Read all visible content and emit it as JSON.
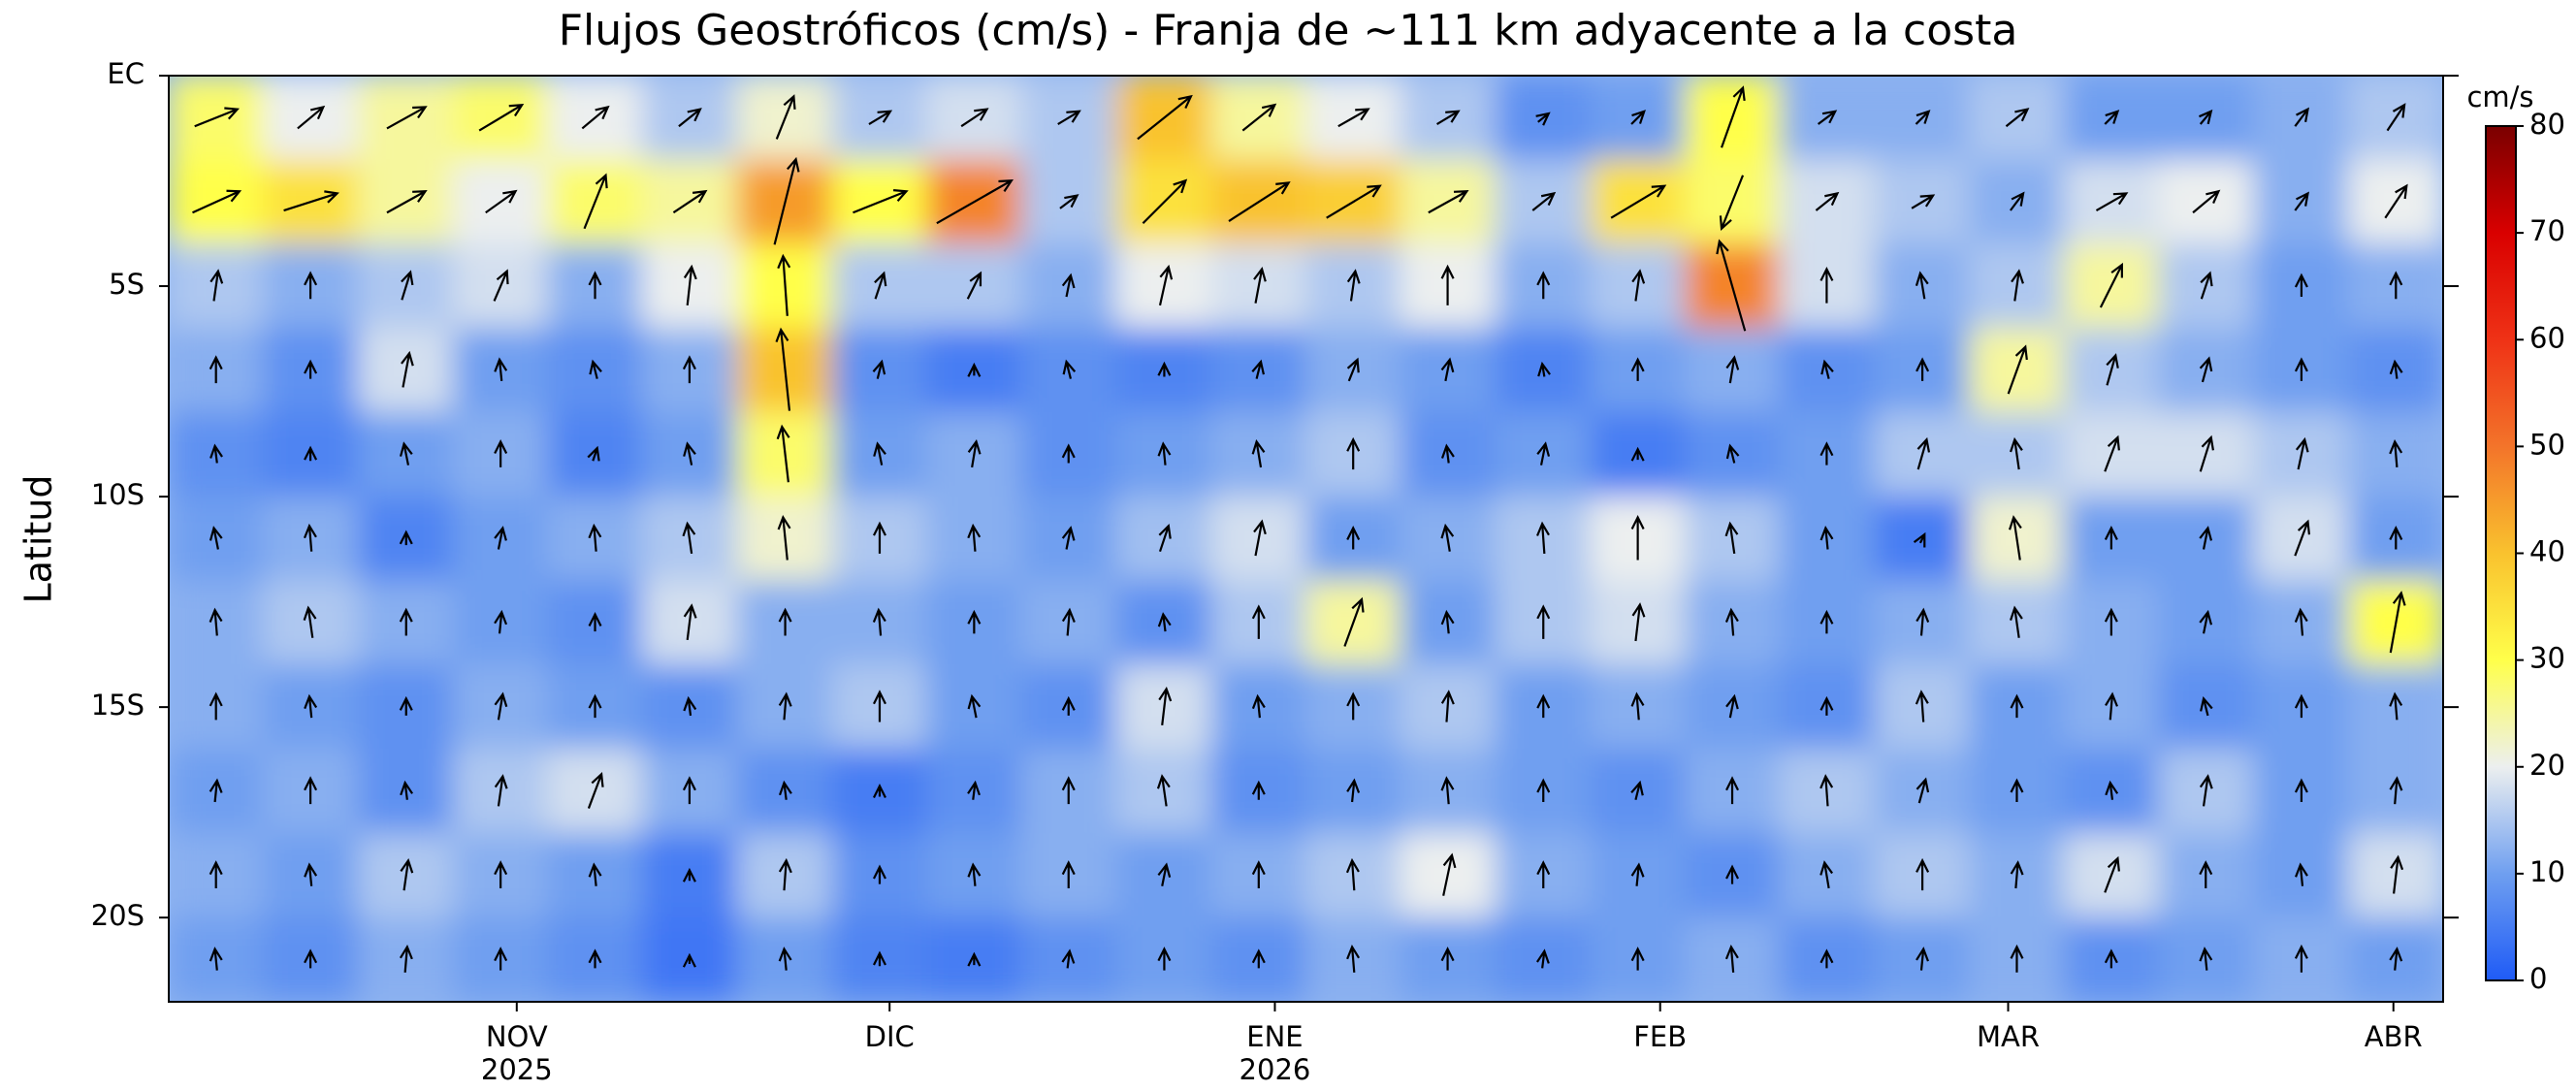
{
  "chart_data": {
    "type": "heatmap",
    "title": "Flujos Geostróficos (cm/s) - Franja de ~111 km adyacente a la costa",
    "ylabel": "Latitud",
    "colorbar_label": "cm/s",
    "x": [
      3.8,
      11.4,
      19.1,
      26.7,
      34.3,
      41.9,
      49.6,
      57.2,
      64.8,
      72.4,
      80.1,
      87.7,
      95.3,
      102.9,
      110.6,
      118.2,
      125.8,
      133.4,
      141.1,
      148.7,
      156.3,
      163.9,
      171.6,
      179.2
    ],
    "y": [
      -1,
      -3,
      -5,
      -7,
      -9,
      -11,
      -13,
      -15,
      -17,
      -19,
      -21
    ],
    "values": [
      [
        28,
        20,
        25,
        28,
        20,
        15,
        22,
        15,
        18,
        15,
        40,
        25,
        20,
        15,
        8,
        10,
        30,
        12,
        12,
        15,
        10,
        10,
        12,
        15
      ],
      [
        30,
        35,
        25,
        20,
        28,
        25,
        45,
        30,
        48,
        15,
        35,
        40,
        38,
        25,
        15,
        35,
        28,
        18,
        15,
        12,
        18,
        20,
        12,
        20
      ],
      [
        15,
        12,
        15,
        18,
        12,
        20,
        30,
        15,
        15,
        12,
        20,
        18,
        15,
        20,
        12,
        15,
        48,
        18,
        12,
        15,
        25,
        15,
        10,
        12
      ],
      [
        12,
        8,
        18,
        10,
        8,
        12,
        40,
        8,
        5,
        8,
        6,
        8,
        12,
        10,
        6,
        10,
        12,
        8,
        10,
        25,
        15,
        12,
        10,
        8
      ],
      [
        8,
        6,
        10,
        12,
        6,
        10,
        28,
        10,
        12,
        8,
        10,
        12,
        15,
        8,
        10,
        5,
        8,
        10,
        15,
        15,
        18,
        18,
        15,
        12
      ],
      [
        10,
        12,
        6,
        10,
        12,
        15,
        22,
        15,
        12,
        10,
        14,
        18,
        10,
        12,
        15,
        20,
        15,
        10,
        5,
        22,
        10,
        10,
        18,
        10
      ],
      [
        12,
        15,
        12,
        10,
        8,
        18,
        12,
        12,
        10,
        12,
        8,
        15,
        25,
        10,
        15,
        18,
        12,
        10,
        12,
        15,
        12,
        10,
        12,
        30
      ],
      [
        12,
        10,
        8,
        12,
        10,
        8,
        12,
        15,
        10,
        8,
        18,
        10,
        12,
        15,
        10,
        12,
        10,
        8,
        15,
        10,
        12,
        8,
        10,
        12
      ],
      [
        10,
        12,
        8,
        15,
        18,
        12,
        8,
        5,
        8,
        12,
        15,
        8,
        10,
        12,
        10,
        8,
        12,
        15,
        12,
        10,
        8,
        15,
        10,
        12
      ],
      [
        12,
        10,
        15,
        12,
        10,
        5,
        15,
        8,
        10,
        12,
        10,
        12,
        15,
        20,
        12,
        10,
        8,
        12,
        15,
        12,
        18,
        12,
        10,
        18
      ],
      [
        10,
        8,
        12,
        10,
        8,
        4,
        10,
        6,
        5,
        8,
        10,
        8,
        12,
        10,
        8,
        10,
        12,
        8,
        10,
        12,
        8,
        10,
        12,
        10
      ]
    ],
    "vectors": {
      "u": [
        [
          20,
          12,
          18,
          20,
          12,
          10,
          8,
          10,
          12,
          10,
          25,
          15,
          14,
          10,
          5,
          6,
          10,
          8,
          6,
          10,
          6,
          5,
          6,
          8
        ],
        [
          22,
          25,
          18,
          14,
          10,
          15,
          10,
          25,
          35,
          8,
          20,
          28,
          25,
          18,
          10,
          25,
          -10,
          10,
          10,
          6,
          14,
          12,
          6,
          10
        ],
        [
          2,
          0,
          4,
          6,
          0,
          2,
          -2,
          4,
          6,
          2,
          4,
          3,
          2,
          0,
          0,
          2,
          -12,
          0,
          -2,
          2,
          10,
          4,
          0,
          0
        ],
        [
          0,
          0,
          3,
          -1,
          -2,
          0,
          -4,
          2,
          0,
          -2,
          0,
          2,
          4,
          2,
          -1,
          0,
          2,
          -2,
          0,
          8,
          4,
          3,
          0,
          -1
        ],
        [
          -1,
          0,
          -2,
          0,
          2,
          -2,
          -3,
          -2,
          2,
          0,
          -1,
          -2,
          0,
          -1,
          2,
          0,
          -2,
          0,
          4,
          -2,
          6,
          5,
          3,
          -1
        ],
        [
          -2,
          -1,
          0,
          2,
          -1,
          -2,
          -2,
          0,
          -1,
          2,
          4,
          3,
          0,
          -2,
          -1,
          0,
          -2,
          -1,
          2,
          -3,
          0,
          2,
          6,
          0
        ],
        [
          -1,
          -2,
          0,
          1,
          0,
          2,
          0,
          -1,
          0,
          1,
          -1,
          0,
          8,
          -1,
          0,
          2,
          -1,
          0,
          1,
          -2,
          0,
          2,
          -1,
          5
        ],
        [
          0,
          -1,
          0,
          2,
          0,
          -1,
          1,
          0,
          -2,
          0,
          2,
          -1,
          0,
          1,
          0,
          -1,
          2,
          0,
          -1,
          0,
          1,
          -2,
          0,
          -1
        ],
        [
          1,
          0,
          -1,
          2,
          6,
          0,
          -1,
          0,
          1,
          0,
          -2,
          0,
          1,
          -1,
          0,
          2,
          0,
          -1,
          3,
          0,
          -1,
          2,
          0,
          1
        ],
        [
          0,
          -1,
          2,
          0,
          -1,
          0,
          1,
          0,
          -1,
          0,
          2,
          0,
          -1,
          4,
          0,
          1,
          0,
          -2,
          0,
          1,
          6,
          0,
          -1,
          2
        ],
        [
          -1,
          0,
          1,
          0,
          0,
          0,
          -1,
          0,
          0,
          1,
          0,
          0,
          -1,
          0,
          1,
          0,
          -1,
          0,
          1,
          0,
          0,
          -1,
          0,
          1
        ]
      ],
      "v": [
        [
          8,
          10,
          10,
          12,
          10,
          8,
          20,
          6,
          8,
          6,
          20,
          12,
          8,
          6,
          4,
          6,
          28,
          6,
          6,
          8,
          6,
          6,
          8,
          12
        ],
        [
          10,
          8,
          10,
          10,
          25,
          10,
          40,
          10,
          20,
          6,
          20,
          18,
          15,
          10,
          8,
          15,
          -25,
          8,
          6,
          8,
          8,
          10,
          8,
          15
        ],
        [
          14,
          12,
          13,
          14,
          12,
          18,
          28,
          12,
          12,
          10,
          18,
          16,
          14,
          18,
          12,
          14,
          42,
          16,
          12,
          14,
          20,
          12,
          10,
          12
        ],
        [
          12,
          8,
          16,
          10,
          8,
          12,
          38,
          8,
          5,
          8,
          6,
          8,
          10,
          10,
          6,
          10,
          12,
          8,
          10,
          22,
          14,
          11,
          10,
          8
        ],
        [
          8,
          6,
          10,
          12,
          6,
          10,
          26,
          10,
          12,
          8,
          10,
          12,
          14,
          8,
          10,
          5,
          8,
          10,
          14,
          14,
          16,
          16,
          14,
          12
        ],
        [
          10,
          12,
          6,
          10,
          12,
          14,
          20,
          14,
          12,
          10,
          12,
          16,
          10,
          12,
          14,
          20,
          14,
          10,
          4,
          20,
          10,
          10,
          16,
          10
        ],
        [
          12,
          14,
          12,
          10,
          8,
          16,
          12,
          12,
          10,
          12,
          8,
          15,
          22,
          10,
          15,
          17,
          12,
          10,
          12,
          14,
          12,
          10,
          12,
          28
        ],
        [
          12,
          10,
          8,
          12,
          10,
          8,
          12,
          14,
          10,
          8,
          17,
          10,
          12,
          14,
          10,
          12,
          10,
          8,
          14,
          10,
          12,
          8,
          10,
          12
        ],
        [
          10,
          12,
          8,
          14,
          16,
          12,
          8,
          5,
          8,
          12,
          14,
          8,
          10,
          12,
          10,
          8,
          12,
          14,
          11,
          10,
          8,
          14,
          10,
          12
        ],
        [
          12,
          10,
          14,
          12,
          10,
          5,
          14,
          8,
          10,
          12,
          10,
          12,
          14,
          19,
          12,
          10,
          8,
          12,
          14,
          12,
          16,
          12,
          10,
          17
        ],
        [
          10,
          8,
          12,
          10,
          8,
          4,
          10,
          6,
          5,
          8,
          10,
          8,
          12,
          10,
          8,
          10,
          12,
          8,
          10,
          12,
          8,
          10,
          12,
          10
        ]
      ]
    },
    "xlim": [
      0,
      183
    ],
    "xticks": [
      {
        "value": 28,
        "label": "NOV\n2025"
      },
      {
        "value": 58,
        "label": "DIC"
      },
      {
        "value": 89,
        "label": "ENE\n2026"
      },
      {
        "value": 120,
        "label": "FEB"
      },
      {
        "value": 148,
        "label": "MAR"
      },
      {
        "value": 179,
        "label": "ABR"
      }
    ],
    "ylim": [
      -22,
      0
    ],
    "yticks": [
      {
        "value": 0,
        "label": "EC"
      },
      {
        "value": -5,
        "label": "5S"
      },
      {
        "value": -10,
        "label": "10S"
      },
      {
        "value": -15,
        "label": "15S"
      },
      {
        "value": -20,
        "label": "20S"
      }
    ],
    "cticks": [
      0,
      10,
      20,
      30,
      40,
      50,
      60,
      70,
      80
    ],
    "colors": [
      "#1f5bf6",
      "#6f9ff0",
      "#ecefef",
      "#ffff4a",
      "#f9c22e",
      "#f3742a",
      "#ef3216",
      "#d90000",
      "#7a0000"
    ],
    "vector_color": "#000000"
  }
}
